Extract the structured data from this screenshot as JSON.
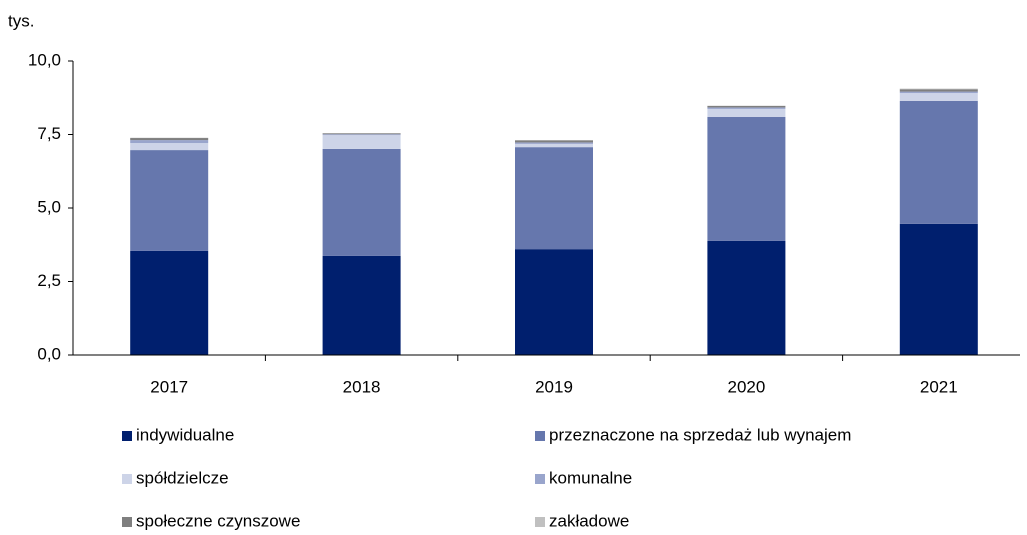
{
  "chart_data": {
    "type": "stacked_bar",
    "y_label": "tys.",
    "categories": [
      "2017",
      "2018",
      "2019",
      "2020",
      "2021"
    ],
    "series": [
      {
        "name": "indywidualne",
        "color": "#001f6e",
        "values": [
          3.54,
          3.37,
          3.6,
          3.88,
          4.46
        ]
      },
      {
        "name": "przeznaczone na sprzedaż lub wynajem",
        "color": "#6677ad",
        "values": [
          3.43,
          3.64,
          3.47,
          4.22,
          4.18
        ]
      },
      {
        "name": "spółdzielcze",
        "color": "#cdd4e8",
        "values": [
          0.24,
          0.47,
          0.11,
          0.27,
          0.27
        ]
      },
      {
        "name": "komunalne",
        "color": "#99a5cc",
        "values": [
          0.1,
          0.03,
          0.05,
          0.05,
          0.05
        ]
      },
      {
        "name": "społeczne czynszowe",
        "color": "#7f7f7f",
        "values": [
          0.07,
          0.03,
          0.07,
          0.05,
          0.08
        ]
      },
      {
        "name": "zakładowe",
        "color": "#c0c0c0",
        "values": [
          0.01,
          0.01,
          0.01,
          0.01,
          0.02
        ]
      }
    ],
    "ylim": [
      0,
      10
    ],
    "yticks": [
      {
        "value": 0,
        "label": "0,0"
      },
      {
        "value": 2.5,
        "label": "2,5"
      },
      {
        "value": 5,
        "label": "5,0"
      },
      {
        "value": 7.5,
        "label": "7,5"
      },
      {
        "value": 10,
        "label": "10,0"
      }
    ],
    "grid": false
  }
}
